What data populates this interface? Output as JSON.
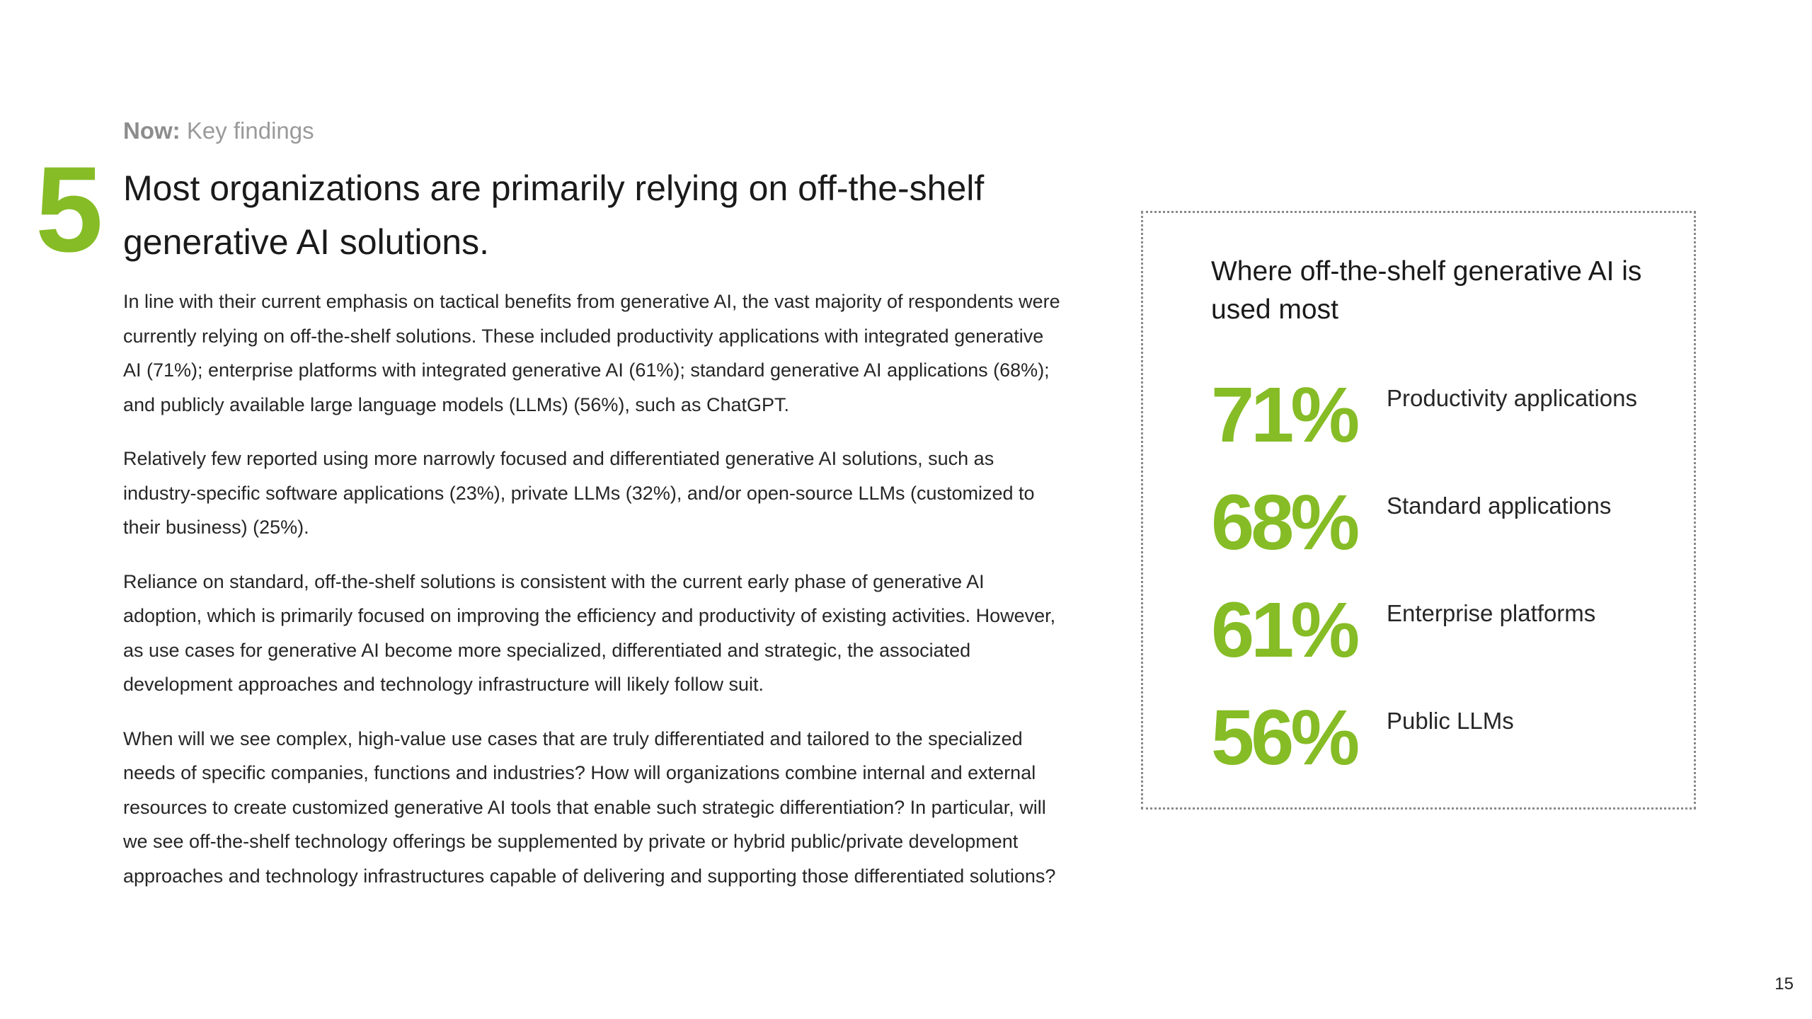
{
  "header": {
    "eyebrow_bold": "Now:",
    "eyebrow_rest": "Key findings"
  },
  "finding": {
    "number": "5",
    "headline": "Most organizations are primarily relying on off-the-shelf generative AI solutions.",
    "paragraphs": [
      "In line with their current emphasis on tactical benefits from generative AI, the vast majority of respondents were currently relying on off-the-shelf solutions. These included productivity applications with integrated generative AI (71%); enterprise platforms with integrated generative AI (61%); standard generative AI applications (68%); and publicly available large language models (LLMs) (56%), such as ChatGPT.",
      "Relatively few reported using more narrowly focused and differentiated generative AI solutions, such as industry-specific software applications (23%), private LLMs (32%), and/or open-source LLMs (customized to their business) (25%).",
      "Reliance on standard, off-the-shelf solutions is consistent with the current early phase of generative AI adoption, which is primarily focused on improving the efficiency and productivity of existing activities. However, as use cases for generative AI become more specialized, differentiated and strategic, the associated development approaches and technology infrastructure will likely follow suit.",
      "When will we see complex, high-value use cases that are truly differentiated and tailored to the specialized needs of specific companies, functions and industries? How will organizations combine internal and external resources to create customized generative AI tools that enable such strategic differentiation? In particular, will we see off-the-shelf technology offerings be supplemented by private or hybrid public/private development approaches and technology infrastructures capable of delivering and supporting those differentiated solutions?"
    ]
  },
  "callout": {
    "title": "Where off-the-shelf generative AI is used most",
    "stats": [
      {
        "value": "71%",
        "label": "Productivity applications"
      },
      {
        "value": "68%",
        "label": "Standard applications"
      },
      {
        "value": "61%",
        "label": "Enterprise platforms"
      },
      {
        "value": "56%",
        "label": "Public LLMs"
      }
    ]
  },
  "colors": {
    "accent": "#86bc25",
    "text": "#262626",
    "muted": "#9a9a9a",
    "border": "#8a8a8a"
  },
  "footer": {
    "page_number": "15"
  }
}
